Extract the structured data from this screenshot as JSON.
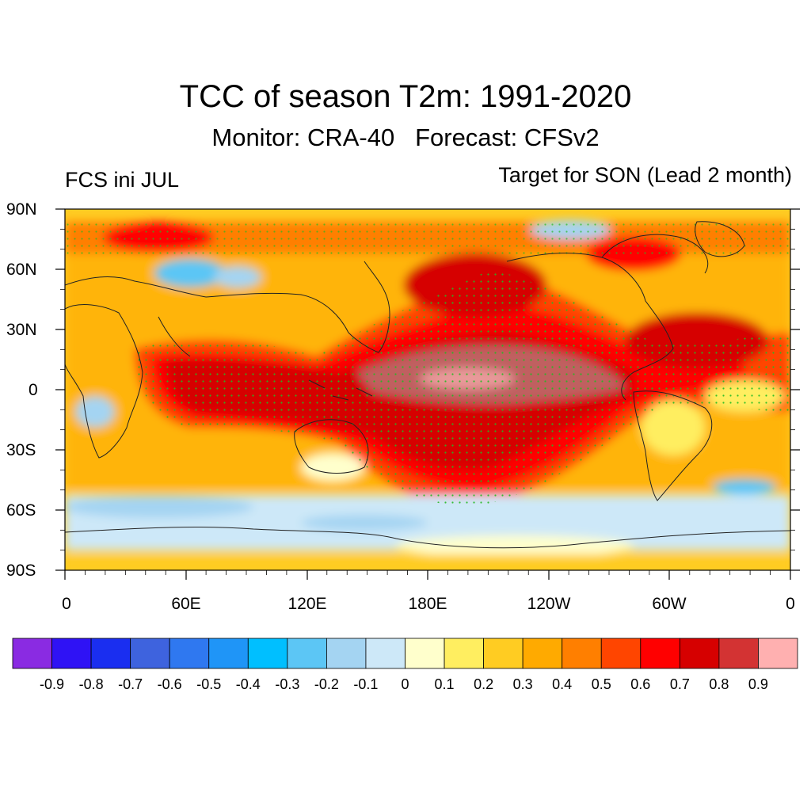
{
  "title": "TCC of season T2m: 1991-2020",
  "subtitle": "Monitor: CRA-40   Forecast: CFSv2",
  "left_string": "FCS ini JUL",
  "right_string": "Target for SON (Lead 2 month)",
  "lat_labels": [
    "90N",
    "60N",
    "30N",
    "0",
    "30S",
    "60S",
    "90S"
  ],
  "lon_labels": [
    "0",
    "60E",
    "120E",
    "180E",
    "120W",
    "60W",
    "0"
  ],
  "colorbar": {
    "colors": [
      "#8a2be2",
      "#2f12f5",
      "#1a2ef0",
      "#3e63de",
      "#2f78f0",
      "#1f95f7",
      "#00bfff",
      "#5cc6f5",
      "#a4d4f2",
      "#cde8f8",
      "#ffffcc",
      "#ffee60",
      "#ffcc22",
      "#ffaa00",
      "#ff7f00",
      "#ff4500",
      "#ff0000",
      "#d60000",
      "#d33333",
      "#ffb0b0"
    ],
    "labels": [
      "-0.9",
      "-0.8",
      "-0.7",
      "-0.6",
      "-0.5",
      "-0.4",
      "-0.3",
      "-0.2",
      "-0.1",
      "0",
      "0.1",
      "0.2",
      "0.3",
      "0.4",
      "0.5",
      "0.6",
      "0.7",
      "0.8",
      "0.9"
    ]
  },
  "chart_data": {
    "type": "heatmap",
    "projection": "cylindrical-equidistant",
    "lat_range": [
      -90,
      90
    ],
    "lon_range": [
      0,
      360
    ],
    "variable": "TCC of seasonal T2m",
    "contour_levels": [
      -0.9,
      -0.8,
      -0.7,
      -0.6,
      -0.5,
      -0.4,
      -0.3,
      -0.2,
      -0.1,
      0,
      0.1,
      0.2,
      0.3,
      0.4,
      0.5,
      0.6,
      0.7,
      0.8,
      0.9
    ],
    "stippling": "green dots mark significant skill"
  }
}
